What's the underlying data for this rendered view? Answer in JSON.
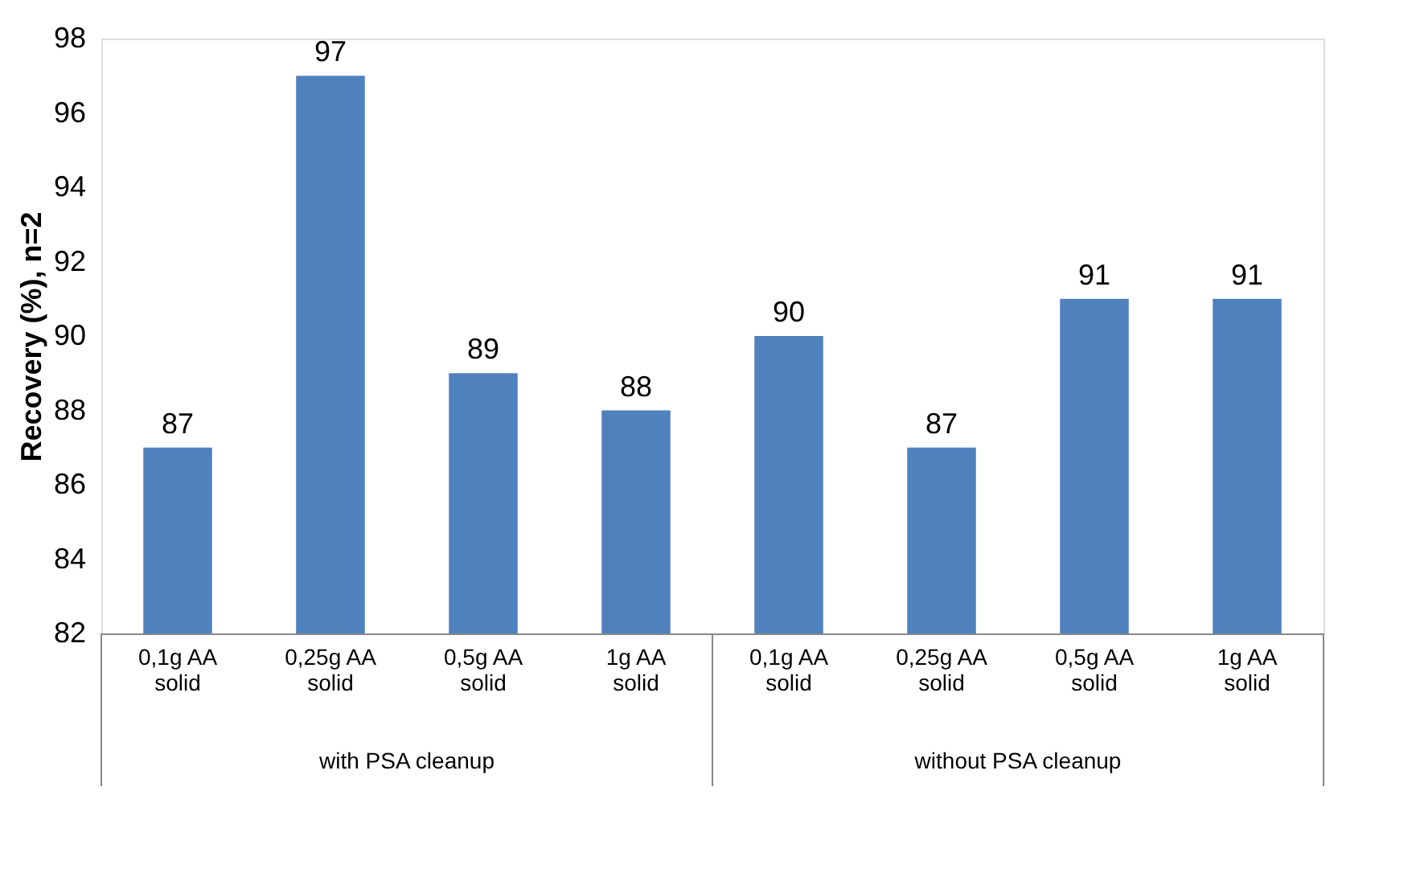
{
  "chart_data": {
    "type": "bar",
    "ylabel": "Recovery (%), n=2",
    "categories": [
      "0,1g AA solid",
      "0,25g AA solid",
      "0,5g AA solid",
      "1g AA solid",
      "0,1g AA solid",
      "0,25g AA solid",
      "0,5g AA solid",
      "1g AA solid"
    ],
    "values": [
      87,
      97,
      89,
      88,
      90,
      87,
      91,
      91
    ],
    "color": "#4f81bd",
    "ylim": [
      82,
      98
    ],
    "yticks": [
      82,
      84,
      86,
      88,
      90,
      92,
      94,
      96,
      98
    ],
    "grid": false,
    "data_labels": true,
    "annotations": [
      "with PSA cleanup",
      "without PSA cleanup"
    ]
  }
}
